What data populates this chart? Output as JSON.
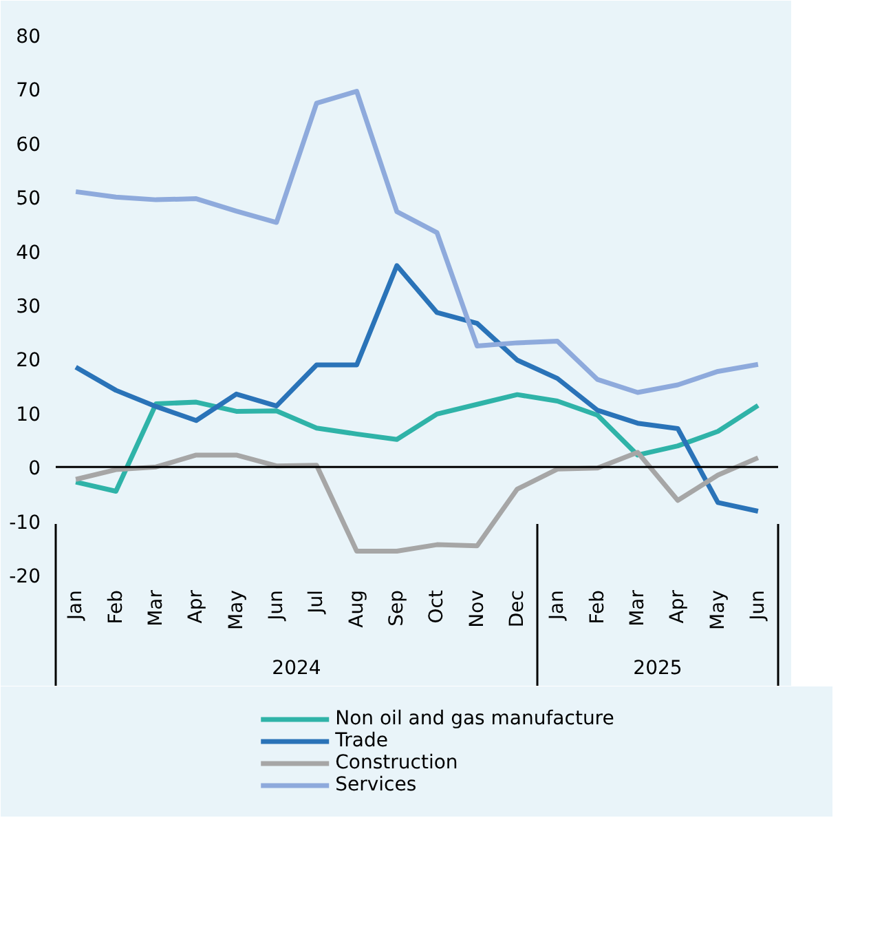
{
  "chart_data": {
    "type": "line",
    "categories": [
      "Jan",
      "Feb",
      "Mar",
      "Apr",
      "May",
      "Jun",
      "Jul",
      "Aug",
      "Sep",
      "Oct",
      "Nov",
      "Dec",
      "Jan",
      "Feb",
      "Mar",
      "Apr",
      "May",
      "Jun"
    ],
    "annotations": [
      "2024",
      "2025"
    ],
    "series": [
      {
        "name": "Non oil and gas manufacture",
        "color": "#2fb3a8",
        "values": [
          -2.8,
          -4.5,
          11.7,
          12,
          10.3,
          10.4,
          7.2,
          6.1,
          5.1,
          9.8,
          11.6,
          13.4,
          12.2,
          9.6,
          2.2,
          3.9,
          6.6,
          11.4
        ]
      },
      {
        "name": "Trade",
        "color": "#2a73b8",
        "values": [
          18.5,
          14.2,
          11.2,
          8.6,
          13.5,
          11.3,
          18.9,
          18.9,
          37.3,
          28.6,
          26.6,
          19.8,
          16.4,
          10.5,
          8.1,
          7.1,
          -6.6,
          -8.2
        ]
      },
      {
        "name": "Construction",
        "color": "#a6a6a6",
        "values": [
          -2.3,
          -0.5,
          0,
          2.2,
          2.2,
          0.2,
          0.3,
          -15.6,
          -15.6,
          -14.4,
          -14.6,
          -4.1,
          -0.4,
          -0.2,
          2.7,
          -6.2,
          -1.5,
          1.7
        ]
      },
      {
        "name": "Services",
        "color": "#8eaadc",
        "values": [
          51,
          50,
          49.5,
          49.7,
          47.4,
          45.3,
          67.4,
          69.6,
          47.3,
          43.4,
          22.4,
          23,
          23.3,
          16.2,
          13.8,
          15.2,
          17.7,
          19
        ]
      }
    ],
    "ylim": [
      -20,
      80
    ],
    "yticks": [
      -20,
      -10,
      0,
      10,
      20,
      30,
      40,
      50,
      60,
      70,
      80
    ],
    "ref_lines": [
      {
        "axis": "y",
        "value": 0,
        "color": "#000000"
      }
    ],
    "grid": false,
    "legend": "bottom"
  }
}
